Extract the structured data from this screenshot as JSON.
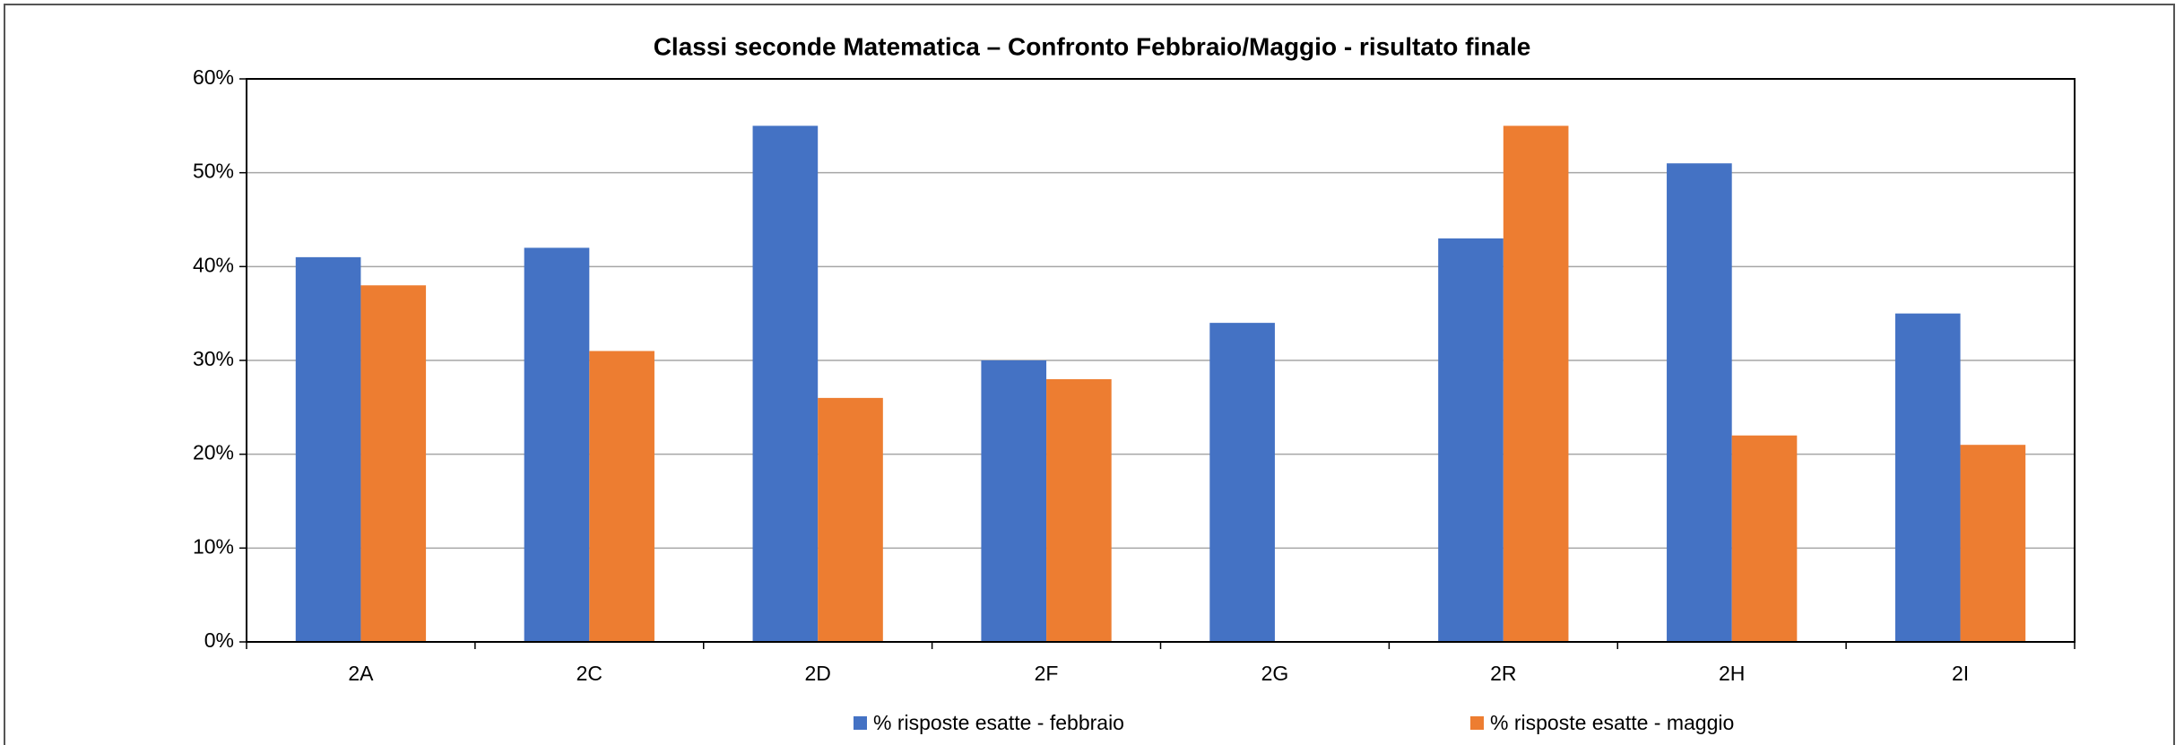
{
  "chart_data": {
    "type": "bar",
    "title": "Classi seconde Matematica – Confronto Febbraio/Maggio - risultato finale",
    "categories": [
      "2A",
      "2C",
      "2D",
      "2F",
      "2G",
      "2R",
      "2H",
      "2I"
    ],
    "series": [
      {
        "name": "% risposte esatte - febbraio",
        "color": "#4472c4",
        "values": [
          41,
          42,
          55,
          30,
          34,
          43,
          51,
          35
        ]
      },
      {
        "name": "% risposte esatte - maggio",
        "color": "#ed7d31",
        "values": [
          38,
          31,
          26,
          28,
          null,
          55,
          22,
          21
        ]
      }
    ],
    "ylim": [
      0,
      60
    ],
    "yticks": [
      {
        "value": 0,
        "label": "0%"
      },
      {
        "value": 10,
        "label": "10%"
      },
      {
        "value": 20,
        "label": "20%"
      },
      {
        "value": 30,
        "label": "30%"
      },
      {
        "value": 40,
        "label": "40%"
      },
      {
        "value": 50,
        "label": "50%"
      },
      {
        "value": 60,
        "label": "60%"
      }
    ],
    "grid": true,
    "legend": "bottom"
  }
}
